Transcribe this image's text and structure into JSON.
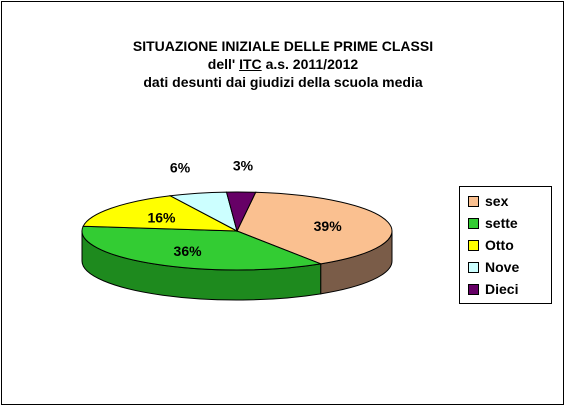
{
  "title": {
    "line1": "SITUAZIONE INIZIALE DELLE PRIME CLASSI",
    "line2_pre": "dell'",
    "line2_itc": "ITC",
    "line2_post": "a.s. 2011/2012",
    "line3": "dati desunti dai giudizi della scuola media"
  },
  "chart_data": {
    "type": "pie",
    "style": "3d",
    "slices": [
      {
        "label": "sex",
        "value": 39,
        "pct_label": "39%",
        "color": "#fac090",
        "side_color": "#7a5c48"
      },
      {
        "label": "sette",
        "value": 36,
        "pct_label": "36%",
        "color": "#33cc33",
        "side_color": "#1e8a1e"
      },
      {
        "label": "Otto",
        "value": 16,
        "pct_label": "16%",
        "color": "#ffff00",
        "side_color": "#b3b300"
      },
      {
        "label": "Nove",
        "value": 6,
        "pct_label": "6%",
        "color": "#ccffff",
        "side_color": "#8fb3b3"
      },
      {
        "label": "Dieci",
        "value": 3,
        "pct_label": "3%",
        "color": "#660066",
        "side_color": "#3d003d"
      }
    ],
    "legend_position": "right"
  }
}
